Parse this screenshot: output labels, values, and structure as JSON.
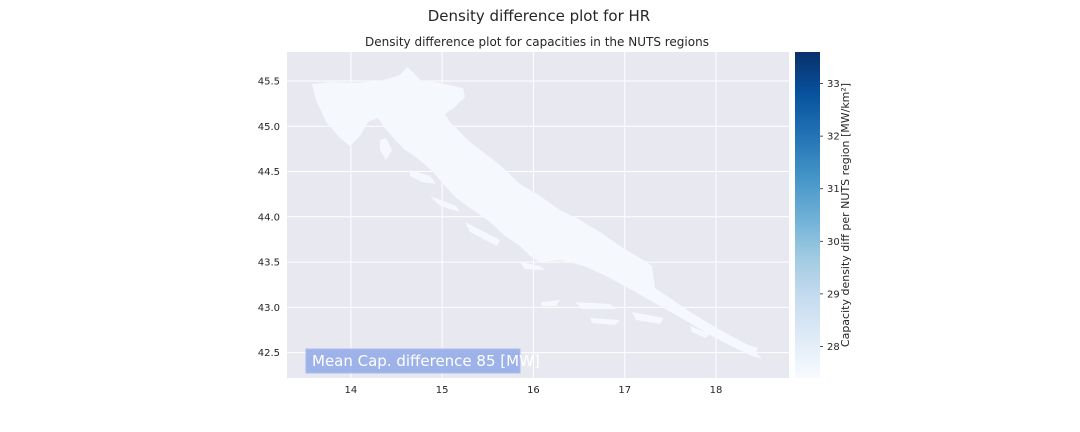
{
  "chart_data": {
    "type": "heatmap",
    "title": "Density difference plot for HR",
    "subtitle": "Density difference plot for capacities in the NUTS regions",
    "xlabel": "",
    "ylabel": "",
    "xlim": [
      13.3,
      18.8
    ],
    "ylim": [
      42.22,
      45.82
    ],
    "x_ticks": [
      14,
      15,
      16,
      17,
      18
    ],
    "y_ticks": [
      42.5,
      43.0,
      43.5,
      44.0,
      44.5,
      45.0,
      45.5
    ],
    "x_tick_labels": [
      "14",
      "15",
      "16",
      "17",
      "18"
    ],
    "y_tick_labels": [
      "42.5",
      "43.0",
      "43.5",
      "44.0",
      "44.5",
      "45.0",
      "45.5"
    ],
    "grid": true,
    "colorbar": {
      "label": "Capacity density diff per NUTS region [MW/km²]",
      "range": [
        27.4,
        33.6
      ],
      "ticks": [
        28,
        29,
        30,
        31,
        32,
        33
      ],
      "tick_labels": [
        "28",
        "29",
        "30",
        "31",
        "32",
        "33"
      ],
      "colormap": "Blues",
      "color_low": "#f7fbff",
      "color_high": "#08306b"
    },
    "annotation": "Mean Cap. difference 85 [MW]",
    "region_fill": "#f5f8fd",
    "background": "#e8e8f0"
  }
}
